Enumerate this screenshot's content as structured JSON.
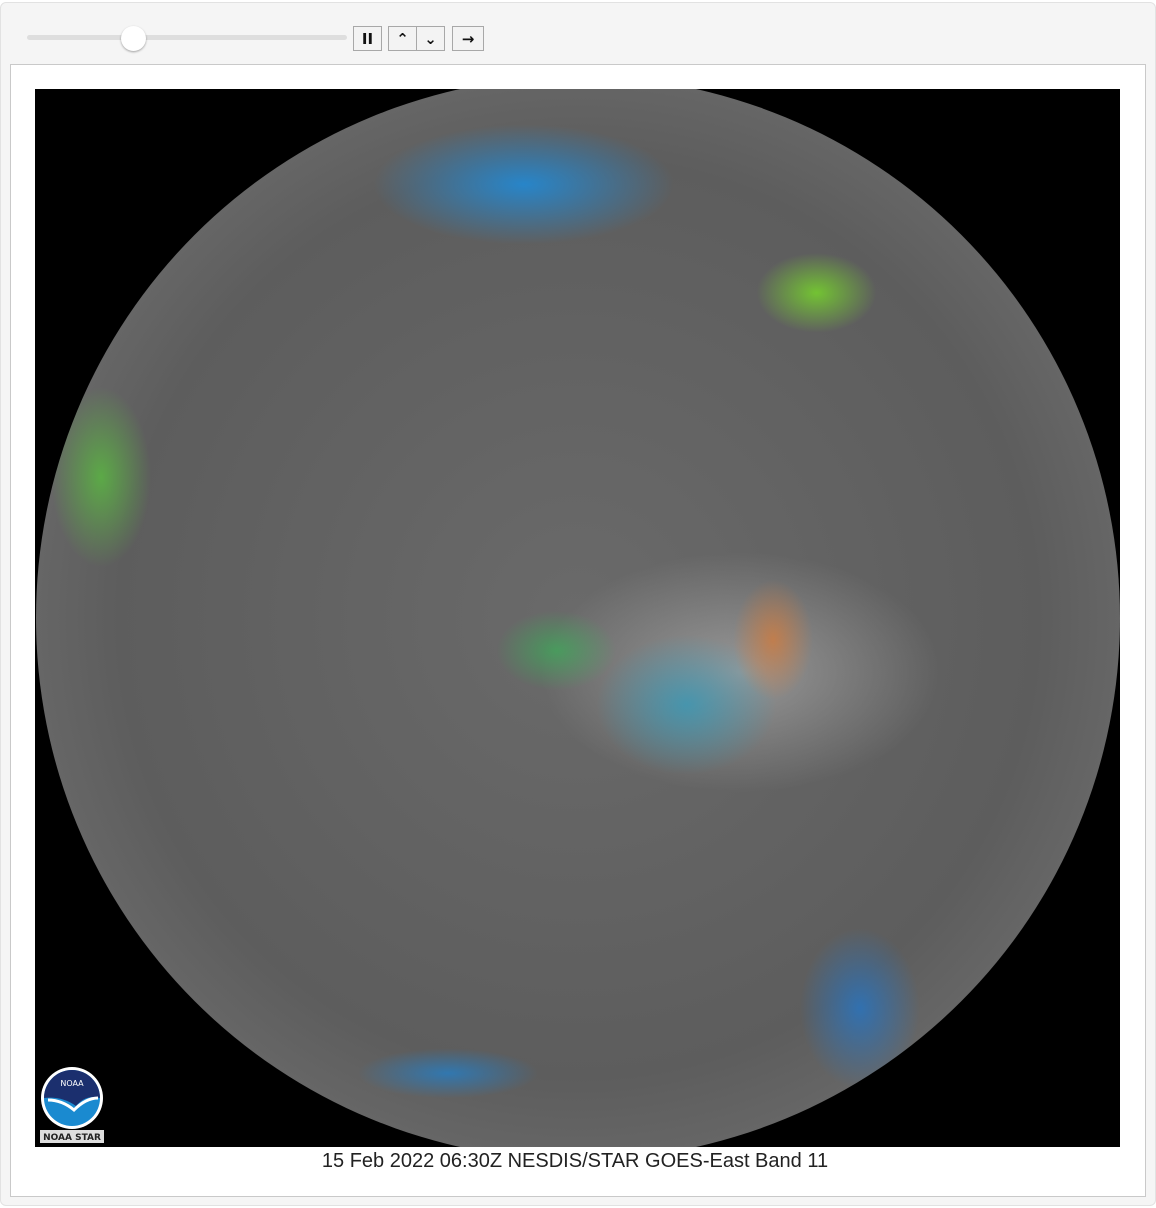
{
  "controls": {
    "slider_position_fraction": 0.33,
    "pause_label": "II",
    "faster_label": "⌃⌃",
    "slower_label": "⌄⌄",
    "step_label": "→"
  },
  "image": {
    "logo_text": "NOAA",
    "logo_subtext": "NOAA STAR",
    "caption": "15 Feb 2022 06:30Z NESDIS/STAR GOES-East Band 11"
  }
}
